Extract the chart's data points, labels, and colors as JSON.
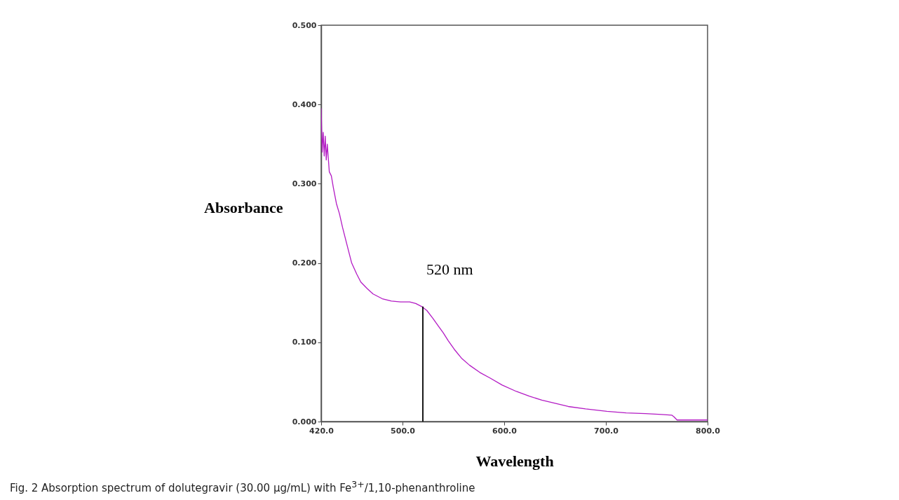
{
  "chart_data": {
    "type": "line",
    "xlabel": "Wavelength",
    "ylabel": "Absorbance",
    "x": [
      420,
      421,
      422,
      423,
      424,
      425,
      426,
      428,
      430,
      432,
      435,
      438,
      441,
      445,
      450,
      455,
      459,
      465,
      471,
      480,
      489,
      498,
      507,
      513,
      519,
      524,
      530,
      535,
      540,
      545,
      551,
      558,
      566,
      576,
      586,
      598,
      612,
      625,
      637,
      650,
      663,
      680,
      701,
      720,
      739,
      755,
      765,
      767,
      770,
      785,
      800
    ],
    "series": [
      {
        "color": "#b31bc4",
        "values": [
          0.395,
          0.34,
          0.365,
          0.335,
          0.36,
          0.33,
          0.35,
          0.315,
          0.31,
          0.295,
          0.275,
          0.262,
          0.245,
          0.225,
          0.2,
          0.186,
          0.176,
          0.168,
          0.161,
          0.155,
          0.152,
          0.151,
          0.151,
          0.149,
          0.145,
          0.14,
          0.13,
          0.121,
          0.112,
          0.102,
          0.091,
          0.08,
          0.071,
          0.062,
          0.055,
          0.046,
          0.038,
          0.032,
          0.027,
          0.023,
          0.019,
          0.016,
          0.013,
          0.011,
          0.01,
          0.009,
          0.008,
          0.006,
          0.002,
          0.002,
          0.002
        ]
      },
      {
        "type": "line",
        "color": "#000000",
        "x": [
          520,
          520
        ],
        "values": [
          0,
          0.145
        ]
      }
    ],
    "xlim": [
      420,
      800
    ],
    "xticks": [
      {
        "value": 420,
        "label": "420.0"
      },
      {
        "value": 500,
        "label": "500.0"
      },
      {
        "value": 600,
        "label": "600.0"
      },
      {
        "value": 700,
        "label": "700.0"
      },
      {
        "value": 800,
        "label": "800.0"
      }
    ],
    "ylim": [
      0,
      0.5
    ],
    "yticks": [
      {
        "value": 0,
        "label": "0.000"
      },
      {
        "value": 0.1,
        "label": "0.100"
      },
      {
        "value": 0.2,
        "label": "0.200"
      },
      {
        "value": 0.3,
        "label": "0.300"
      },
      {
        "value": 0.4,
        "label": "0.400"
      },
      {
        "value": 0.5,
        "label": "0.500"
      }
    ],
    "grid": false,
    "annotations": [
      "520 nm",
      "Fig. 2 Absorption spectrum of dolutegravir (30.00 µg/mL) with Fe$^{3+}$/1,10-phenanthroline"
    ]
  }
}
